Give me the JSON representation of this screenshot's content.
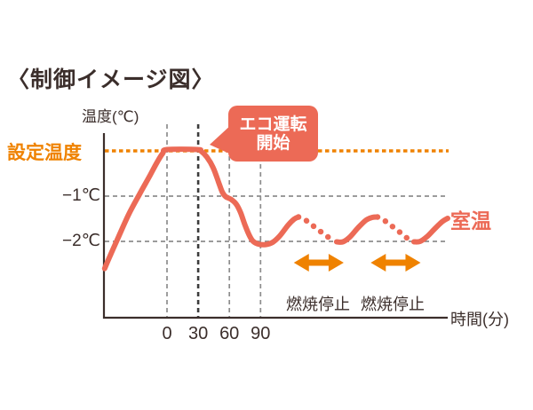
{
  "title": "〈制御イメージ図〉",
  "colors": {
    "accent_red": "#EC6A56",
    "accent_orange": "#EF8200",
    "text_dark": "#3B2E2B",
    "grid_gray": "#8D8D8D",
    "grid_bold": "#3C3C3C"
  },
  "labels": {
    "y_axis": "温度(℃)",
    "set_temp": "設定温度",
    "minus1": "−1℃",
    "minus2": "−2℃",
    "room_temp": "室温",
    "x_axis": "時間(分)",
    "burn_stop_1": "燃焼停止",
    "burn_stop_2": "燃焼停止",
    "callout_line1": "エコ運転",
    "callout_line2": "開始"
  },
  "chart_data": {
    "type": "line",
    "title": "制御イメージ図",
    "xlabel": "時間(分)",
    "ylabel": "温度(℃)",
    "series_name": "室温",
    "unit": "y = room temp offset from set temp (°C), x = time (min)",
    "x_ticks": [
      0,
      30,
      60,
      90
    ],
    "reference_lines": {
      "set_temp_offset_c": 0,
      "gridline_offsets_c": [
        -1,
        -2
      ]
    },
    "legend_position": "right-of-curve",
    "grid": true,
    "segments": [
      {
        "style": "solid",
        "points": [
          [
            -60,
            -2.6
          ],
          [
            -55,
            -2.33
          ],
          [
            -47,
            -1.92
          ],
          [
            -37,
            -1.41
          ],
          [
            -26.5,
            -0.96
          ],
          [
            -17,
            -0.57
          ],
          [
            -9.5,
            -0.25
          ],
          [
            -4,
            -0.05
          ],
          [
            0,
            0.03
          ],
          [
            29,
            0.03
          ],
          [
            33,
            -0.01
          ],
          [
            38.5,
            -0.14
          ],
          [
            44.4,
            -0.37
          ],
          [
            49.6,
            -0.69
          ],
          [
            53,
            -0.9
          ],
          [
            56.4,
            -1.01
          ],
          [
            61.5,
            -1.07
          ],
          [
            66.7,
            -1.18
          ],
          [
            70.9,
            -1.37
          ],
          [
            75.2,
            -1.65
          ],
          [
            79.5,
            -1.88
          ],
          [
            82.9,
            -2.0
          ],
          [
            88,
            -2.06
          ],
          [
            94.9,
            -2.07
          ],
          [
            101.7,
            -2.02
          ],
          [
            108.5,
            -1.88
          ],
          [
            116.2,
            -1.65
          ],
          [
            122.2,
            -1.51
          ],
          [
            126.5,
            -1.46
          ]
        ]
      },
      {
        "style": "dotted",
        "points": [
          [
            126.5,
            -1.46
          ],
          [
            130.8,
            -1.49
          ],
          [
            138.5,
            -1.62
          ],
          [
            147,
            -1.77
          ],
          [
            154.7,
            -1.9
          ],
          [
            160.7,
            -1.98
          ]
        ]
      },
      {
        "style": "solid",
        "points": [
          [
            163.2,
            -2.01
          ],
          [
            169.2,
            -2.01
          ],
          [
            176.1,
            -1.9
          ],
          [
            183.8,
            -1.7
          ],
          [
            191.5,
            -1.53
          ],
          [
            197.4,
            -1.47
          ],
          [
            202.6,
            -1.46
          ]
        ]
      },
      {
        "style": "dotted",
        "points": [
          [
            202.6,
            -1.46
          ],
          [
            206.8,
            -1.5
          ],
          [
            214.5,
            -1.63
          ],
          [
            223.1,
            -1.78
          ],
          [
            229.9,
            -1.91
          ],
          [
            235,
            -1.98
          ]
        ]
      },
      {
        "style": "solid",
        "points": [
          [
            237.6,
            -2.01
          ],
          [
            243.6,
            -2.0
          ],
          [
            250.4,
            -1.89
          ],
          [
            258.1,
            -1.71
          ],
          [
            265,
            -1.56
          ],
          [
            270.1,
            -1.49
          ]
        ]
      }
    ],
    "annotations": {
      "callout": {
        "text": "エコ運転開始",
        "points_at_min": 30
      },
      "burn_stop_arrows": [
        {
          "t_start": 122,
          "t_end": 170,
          "offset_c": -2.47
        },
        {
          "t_start": 196,
          "t_end": 244,
          "offset_c": -2.47
        }
      ]
    }
  }
}
